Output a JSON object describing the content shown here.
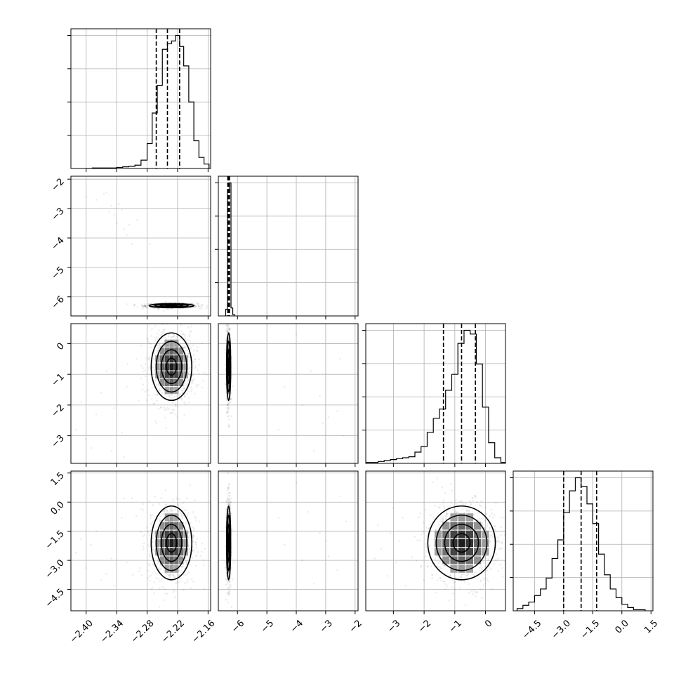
{
  "chart_data": {
    "type": "corner",
    "params": [
      {
        "range": [
          -2.43,
          -2.155
        ],
        "ticks": [
          -2.4,
          -2.34,
          -2.28,
          -2.22,
          -2.16
        ],
        "tick_labels": [
          "−2.40",
          "−2.34",
          "−2.28",
          "−2.22",
          "−2.16"
        ]
      },
      {
        "range": [
          -6.65,
          -1.9
        ],
        "ticks": [
          -6,
          -5,
          -4,
          -3,
          -2
        ],
        "tick_labels": [
          "−6",
          "−5",
          "−4",
          "−3",
          "−2"
        ]
      },
      {
        "range": [
          -3.9,
          0.65
        ],
        "ticks": [
          -3,
          -2,
          -1,
          0
        ],
        "tick_labels": [
          "−3",
          "−2",
          "−1",
          "0"
        ]
      },
      {
        "range": [
          -5.6,
          1.6
        ],
        "ticks": [
          -4.5,
          -3.0,
          -1.5,
          0.0,
          1.5
        ],
        "tick_labels": [
          "−4.5",
          "−3.0",
          "−1.5",
          "0.0",
          "1.5"
        ]
      }
    ],
    "histograms": [
      {
        "edges": [
          -2.4,
          -2.388,
          -2.376,
          -2.364,
          -2.352,
          -2.34,
          -2.328,
          -2.316,
          -2.304,
          -2.292,
          -2.28,
          -2.27,
          -2.26,
          -2.25,
          -2.24,
          -2.232,
          -2.224,
          -2.216,
          -2.208,
          -2.198,
          -2.188,
          -2.178,
          -2.168,
          -2.158
        ],
        "counts": [
          0,
          1,
          1,
          1,
          1,
          2,
          3,
          4,
          6,
          15,
          45,
          100,
          150,
          215,
          225,
          230,
          240,
          220,
          185,
          120,
          50,
          20,
          8
        ],
        "quantiles": [
          -2.262,
          -2.24,
          -2.216
        ]
      },
      {
        "edges": [
          -6.4,
          -6.34,
          -6.28,
          -6.22,
          -6.16,
          -6.1
        ],
        "counts": [
          5,
          95,
          100,
          6,
          1
        ],
        "quantiles": [
          -6.33,
          -6.3,
          -6.27
        ]
      },
      {
        "edges": [
          -3.9,
          -3.7,
          -3.5,
          -3.3,
          -3.1,
          -2.9,
          -2.7,
          -2.5,
          -2.3,
          -2.1,
          -1.9,
          -1.7,
          -1.5,
          -1.3,
          -1.1,
          -0.9,
          -0.7,
          -0.5,
          -0.3,
          -0.1,
          0.1,
          0.3,
          0.5,
          0.65
        ],
        "counts": [
          1,
          1,
          2,
          3,
          4,
          5,
          6,
          7,
          12,
          18,
          33,
          48,
          58,
          78,
          95,
          128,
          142,
          138,
          106,
          60,
          22,
          6,
          1
        ],
        "quantiles": [
          -1.37,
          -0.78,
          -0.33
        ]
      },
      {
        "edges": [
          -5.4,
          -5.1,
          -4.8,
          -4.5,
          -4.2,
          -3.9,
          -3.6,
          -3.3,
          -3.0,
          -2.7,
          -2.4,
          -2.1,
          -1.8,
          -1.5,
          -1.2,
          -0.9,
          -0.6,
          -0.3,
          0.0,
          0.3,
          0.6,
          0.9,
          1.2
        ],
        "counts": [
          2,
          5,
          8,
          14,
          20,
          30,
          48,
          65,
          90,
          110,
          122,
          114,
          98,
          80,
          52,
          33,
          20,
          12,
          6,
          3,
          1,
          1
        ],
        "quantiles": [
          -3.0,
          -2.1,
          -1.3
        ]
      }
    ],
    "joints": [
      {
        "x": 0,
        "y": 1,
        "mean": [
          -2.232,
          -6.3
        ],
        "sd": [
          0.022,
          0.035
        ],
        "outliers": [
          [
            -2.4,
            -2.6
          ],
          [
            -2.38,
            -2.7
          ],
          [
            -2.365,
            -2.5
          ],
          [
            -2.35,
            -2.9
          ],
          [
            -2.345,
            -3.2
          ],
          [
            -2.34,
            -3.5
          ],
          [
            -2.33,
            -3.05
          ],
          [
            -2.325,
            -3.7
          ],
          [
            -2.32,
            -3.9
          ],
          [
            -2.31,
            -4.2
          ],
          [
            -2.3,
            -3.4
          ],
          [
            -2.36,
            -2.45
          ],
          [
            -2.335,
            -2.85
          ],
          [
            -2.275,
            -4.2
          ],
          [
            -2.355,
            -3.1
          ],
          [
            -2.315,
            -3.55
          ]
        ]
      },
      {
        "x": 0,
        "y": 2,
        "mean": [
          -2.232,
          -0.75
        ],
        "sd": [
          0.02,
          0.55
        ],
        "outliers": [
          [
            -2.42,
            -2.8
          ],
          [
            -2.4,
            -3.1
          ],
          [
            -2.38,
            -2.3
          ],
          [
            -2.37,
            -1.6
          ],
          [
            -2.35,
            -3.5
          ],
          [
            -2.33,
            -2.9
          ],
          [
            -2.41,
            -1.9
          ],
          [
            -2.36,
            -0.9
          ],
          [
            -2.39,
            -3.4
          ],
          [
            -2.345,
            -2.1
          ],
          [
            -2.325,
            -3.7
          ],
          [
            -2.32,
            -1.4
          ]
        ]
      },
      {
        "x": 0,
        "y": 3,
        "mean": [
          -2.232,
          -2.1
        ],
        "sd": [
          0.02,
          0.95
        ],
        "outliers": [
          [
            -2.42,
            -2.6
          ],
          [
            -2.4,
            -3.4
          ],
          [
            -2.38,
            -1.5
          ],
          [
            -2.37,
            -4.0
          ],
          [
            -2.35,
            -2.9
          ],
          [
            -2.33,
            -0.8
          ],
          [
            -2.41,
            -1.9
          ],
          [
            -2.36,
            -3.7
          ],
          [
            -2.39,
            -2.2
          ],
          [
            -2.345,
            -4.3
          ],
          [
            -2.325,
            0.2
          ],
          [
            -2.32,
            -3.1
          ]
        ]
      },
      {
        "x": 1,
        "y": 2,
        "mean": [
          -6.3,
          -0.75
        ],
        "sd": [
          0.035,
          0.55
        ],
        "outliers": [
          [
            -4.0,
            0.3
          ],
          [
            -3.5,
            -0.9
          ],
          [
            -3.2,
            -1.7
          ],
          [
            -2.9,
            -2.4
          ],
          [
            -2.6,
            -2.2
          ],
          [
            -2.4,
            -3.0
          ],
          [
            -3.1,
            -2.6
          ],
          [
            -4.4,
            -1.4
          ],
          [
            -3.8,
            -2.0
          ],
          [
            -2.5,
            -0.5
          ],
          [
            -3.4,
            -3.5
          ],
          [
            -4.6,
            -2.8
          ]
        ]
      },
      {
        "x": 1,
        "y": 3,
        "mean": [
          -6.3,
          -2.1
        ],
        "sd": [
          0.035,
          0.95
        ],
        "outliers": [
          [
            -4.0,
            1.0
          ],
          [
            -3.6,
            -0.5
          ],
          [
            -3.2,
            -1.6
          ],
          [
            -2.9,
            -2.8
          ],
          [
            -2.6,
            -3.5
          ],
          [
            -2.3,
            -1.0
          ],
          [
            -3.4,
            -4.2
          ],
          [
            -4.4,
            -2.2
          ],
          [
            -3.8,
            -3.0
          ],
          [
            -2.5,
            0.3
          ],
          [
            -4.6,
            -0.8
          ],
          [
            -3.0,
            -2.0
          ]
        ]
      },
      {
        "x": 2,
        "y": 3,
        "mean": [
          -0.78,
          -2.1
        ],
        "sd": [
          0.55,
          0.95
        ],
        "outliers": [
          [
            -3.4,
            -2.4
          ],
          [
            -3.1,
            -1.6
          ],
          [
            -2.9,
            -3.1
          ],
          [
            -3.6,
            -2.9
          ],
          [
            -2.7,
            -0.8
          ],
          [
            -3.2,
            -3.8
          ],
          [
            -2.8,
            -2.0
          ],
          [
            -3.5,
            -1.2
          ],
          [
            -2.6,
            -4.3
          ],
          [
            -3.0,
            -0.3
          ]
        ]
      }
    ]
  }
}
